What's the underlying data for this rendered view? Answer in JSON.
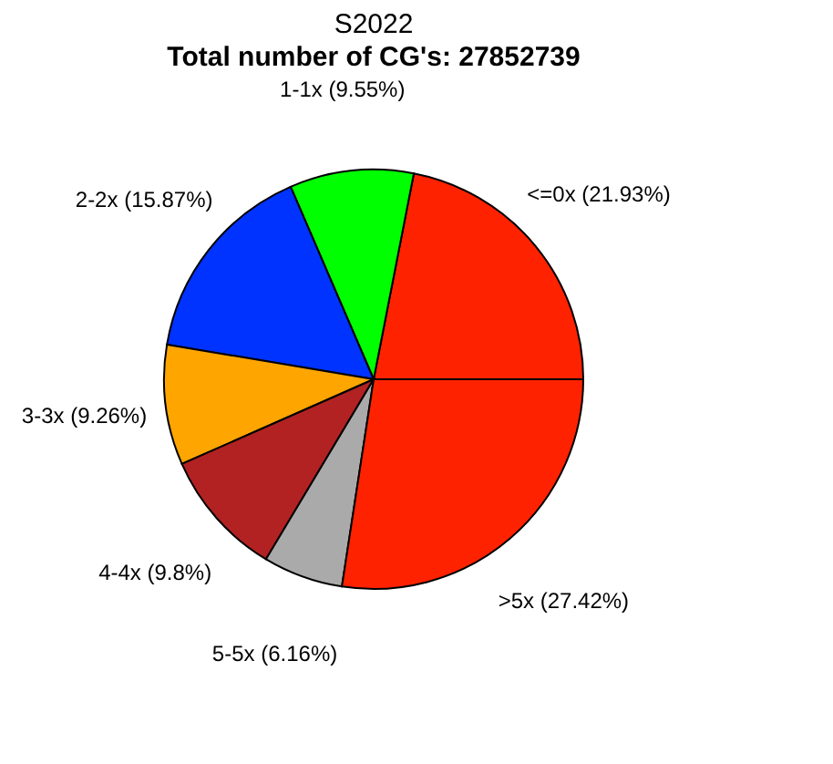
{
  "chart_data": {
    "type": "pie",
    "title": "S2022",
    "subtitle": "Total number of CG's: 27852739",
    "categories": [
      "<=0x (21.93%)",
      "1-1x (9.55%)",
      "2-2x (15.87%)",
      "3-3x (9.26%)",
      "4-4x (9.8%)",
      "5-5x (6.16%)",
      ">5x (27.42%)"
    ],
    "values": [
      21.93,
      9.55,
      15.87,
      9.26,
      9.8,
      6.16,
      27.42
    ],
    "colors": [
      "#ff2200",
      "#00ff00",
      "#0033ff",
      "#ffa500",
      "#b22222",
      "#aaaaaa",
      "#ff2200"
    ],
    "legend": false
  }
}
